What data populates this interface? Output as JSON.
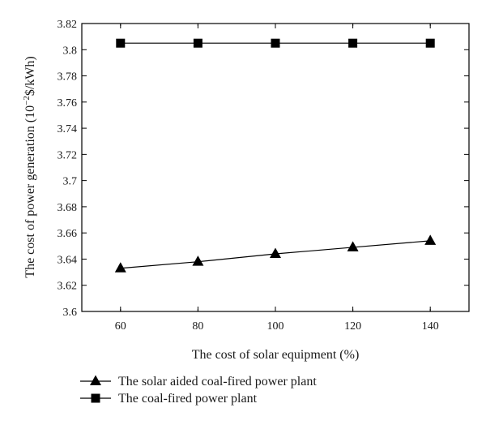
{
  "chart_data": {
    "type": "line",
    "xlabel": "The cost of solar equipment (%)",
    "ylabel_main": "The cost of power generation (10",
    "ylabel_sup": "−2",
    "ylabel_unit": "$/kWh)",
    "x": [
      60,
      80,
      100,
      120,
      140
    ],
    "xlim": [
      50,
      150
    ],
    "ylim": [
      3.6,
      3.82
    ],
    "x_ticks": [
      60,
      80,
      100,
      120,
      140
    ],
    "x_tick_labels": [
      "60",
      "80",
      "100",
      "120",
      "140"
    ],
    "y_ticks": [
      3.6,
      3.62,
      3.64,
      3.66,
      3.68,
      3.7,
      3.72,
      3.74,
      3.76,
      3.78,
      3.8,
      3.82
    ],
    "y_tick_labels": [
      "3.6",
      "3.62",
      "3.64",
      "3.66",
      "3.68",
      "3.7",
      "3.72",
      "3.74",
      "3.76",
      "3.78",
      "3.8",
      "3.82"
    ],
    "grid": false,
    "legend_position": "bottom",
    "series": [
      {
        "name": "The coal-fired power plant",
        "marker": "square",
        "values": [
          3.805,
          3.805,
          3.805,
          3.805,
          3.805
        ]
      },
      {
        "name": "The solar aided coal-fired power plant",
        "marker": "triangle",
        "values": [
          3.633,
          3.638,
          3.644,
          3.649,
          3.654
        ]
      }
    ],
    "legend_order": [
      1,
      0
    ],
    "colors": {
      "line": "#000000",
      "marker": "#000000"
    }
  }
}
